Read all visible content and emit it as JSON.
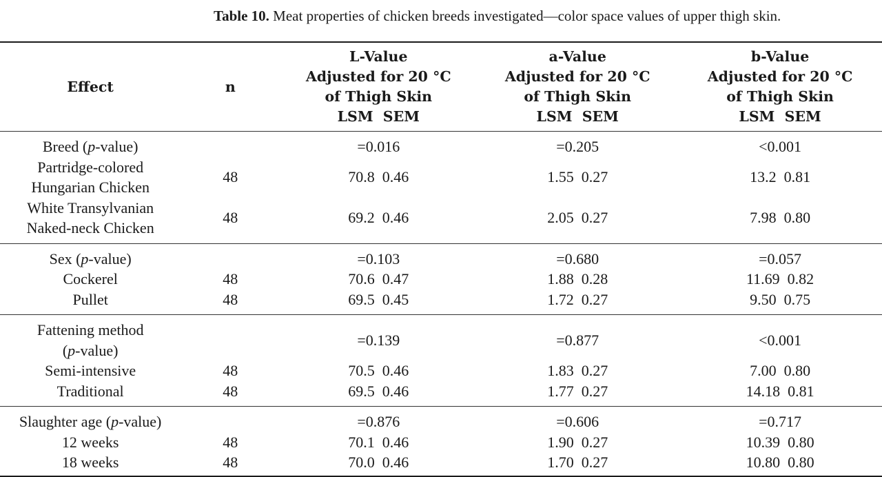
{
  "caption": {
    "label": "Table 10.",
    "text": " Meat properties of chicken breeds investigated—color space values of upper thigh skin."
  },
  "header": {
    "effect": "Effect",
    "n": "n",
    "l_value": [
      "L-Value",
      "Adjusted for 20 °C",
      "of Thigh Skin",
      "LSM  SEM"
    ],
    "a_value": [
      "a-Value",
      "Adjusted for 20 °C",
      "of Thigh Skin",
      "LSM  SEM"
    ],
    "b_value": [
      "b-Value",
      "Adjusted for 20 °C",
      "of Thigh Skin",
      "LSM  SEM"
    ]
  },
  "blocks": [
    {
      "effect": {
        "pre": "Breed (",
        "p": "p",
        "post": "-value)"
      },
      "pvalues": {
        "l": "=0.016",
        "a": "=0.205",
        "b": "<0.001"
      },
      "rows": [
        {
          "label": [
            "Partridge-colored",
            "Hungarian Chicken"
          ],
          "n": "48",
          "l": "70.8  0.46",
          "a": "1.55  0.27",
          "b": "13.2  0.81"
        },
        {
          "label": [
            "White Transylvanian",
            "Naked-neck Chicken"
          ],
          "n": "48",
          "l": "69.2  0.46",
          "a": "2.05  0.27",
          "b": "7.98  0.80"
        }
      ]
    },
    {
      "effect": {
        "pre": "Sex (",
        "p": "p",
        "post": "-value)"
      },
      "pvalues": {
        "l": "=0.103",
        "a": "=0.680",
        "b": "=0.057"
      },
      "rows": [
        {
          "label": [
            "Cockerel"
          ],
          "n": "48",
          "l": "70.6  0.47",
          "a": "1.88  0.28",
          "b": "11.69  0.82"
        },
        {
          "label": [
            "Pullet"
          ],
          "n": "48",
          "l": "69.5  0.45",
          "a": "1.72  0.27",
          "b": "9.50  0.75"
        }
      ]
    },
    {
      "effect": {
        "line1": "Fattening method",
        "pre": "(",
        "p": "p",
        "post": "-value)"
      },
      "pvalues": {
        "l": "=0.139",
        "a": "=0.877",
        "b": "<0.001"
      },
      "rows": [
        {
          "label": [
            "Semi-intensive"
          ],
          "n": "48",
          "l": "70.5  0.46",
          "a": "1.83  0.27",
          "b": "7.00  0.80"
        },
        {
          "label": [
            "Traditional"
          ],
          "n": "48",
          "l": "69.5  0.46",
          "a": "1.77  0.27",
          "b": "14.18  0.81"
        }
      ]
    },
    {
      "effect": {
        "pre": "Slaughter age (",
        "p": "p",
        "post": "-value)"
      },
      "pvalues": {
        "l": "=0.876",
        "a": "=0.606",
        "b": "=0.717"
      },
      "rows": [
        {
          "label": [
            "12 weeks"
          ],
          "n": "48",
          "l": "70.1  0.46",
          "a": "1.90  0.27",
          "b": "10.39  0.80"
        },
        {
          "label": [
            "18 weeks"
          ],
          "n": "48",
          "l": "70.0  0.46",
          "a": "1.70  0.27",
          "b": "10.80  0.80"
        }
      ]
    }
  ]
}
